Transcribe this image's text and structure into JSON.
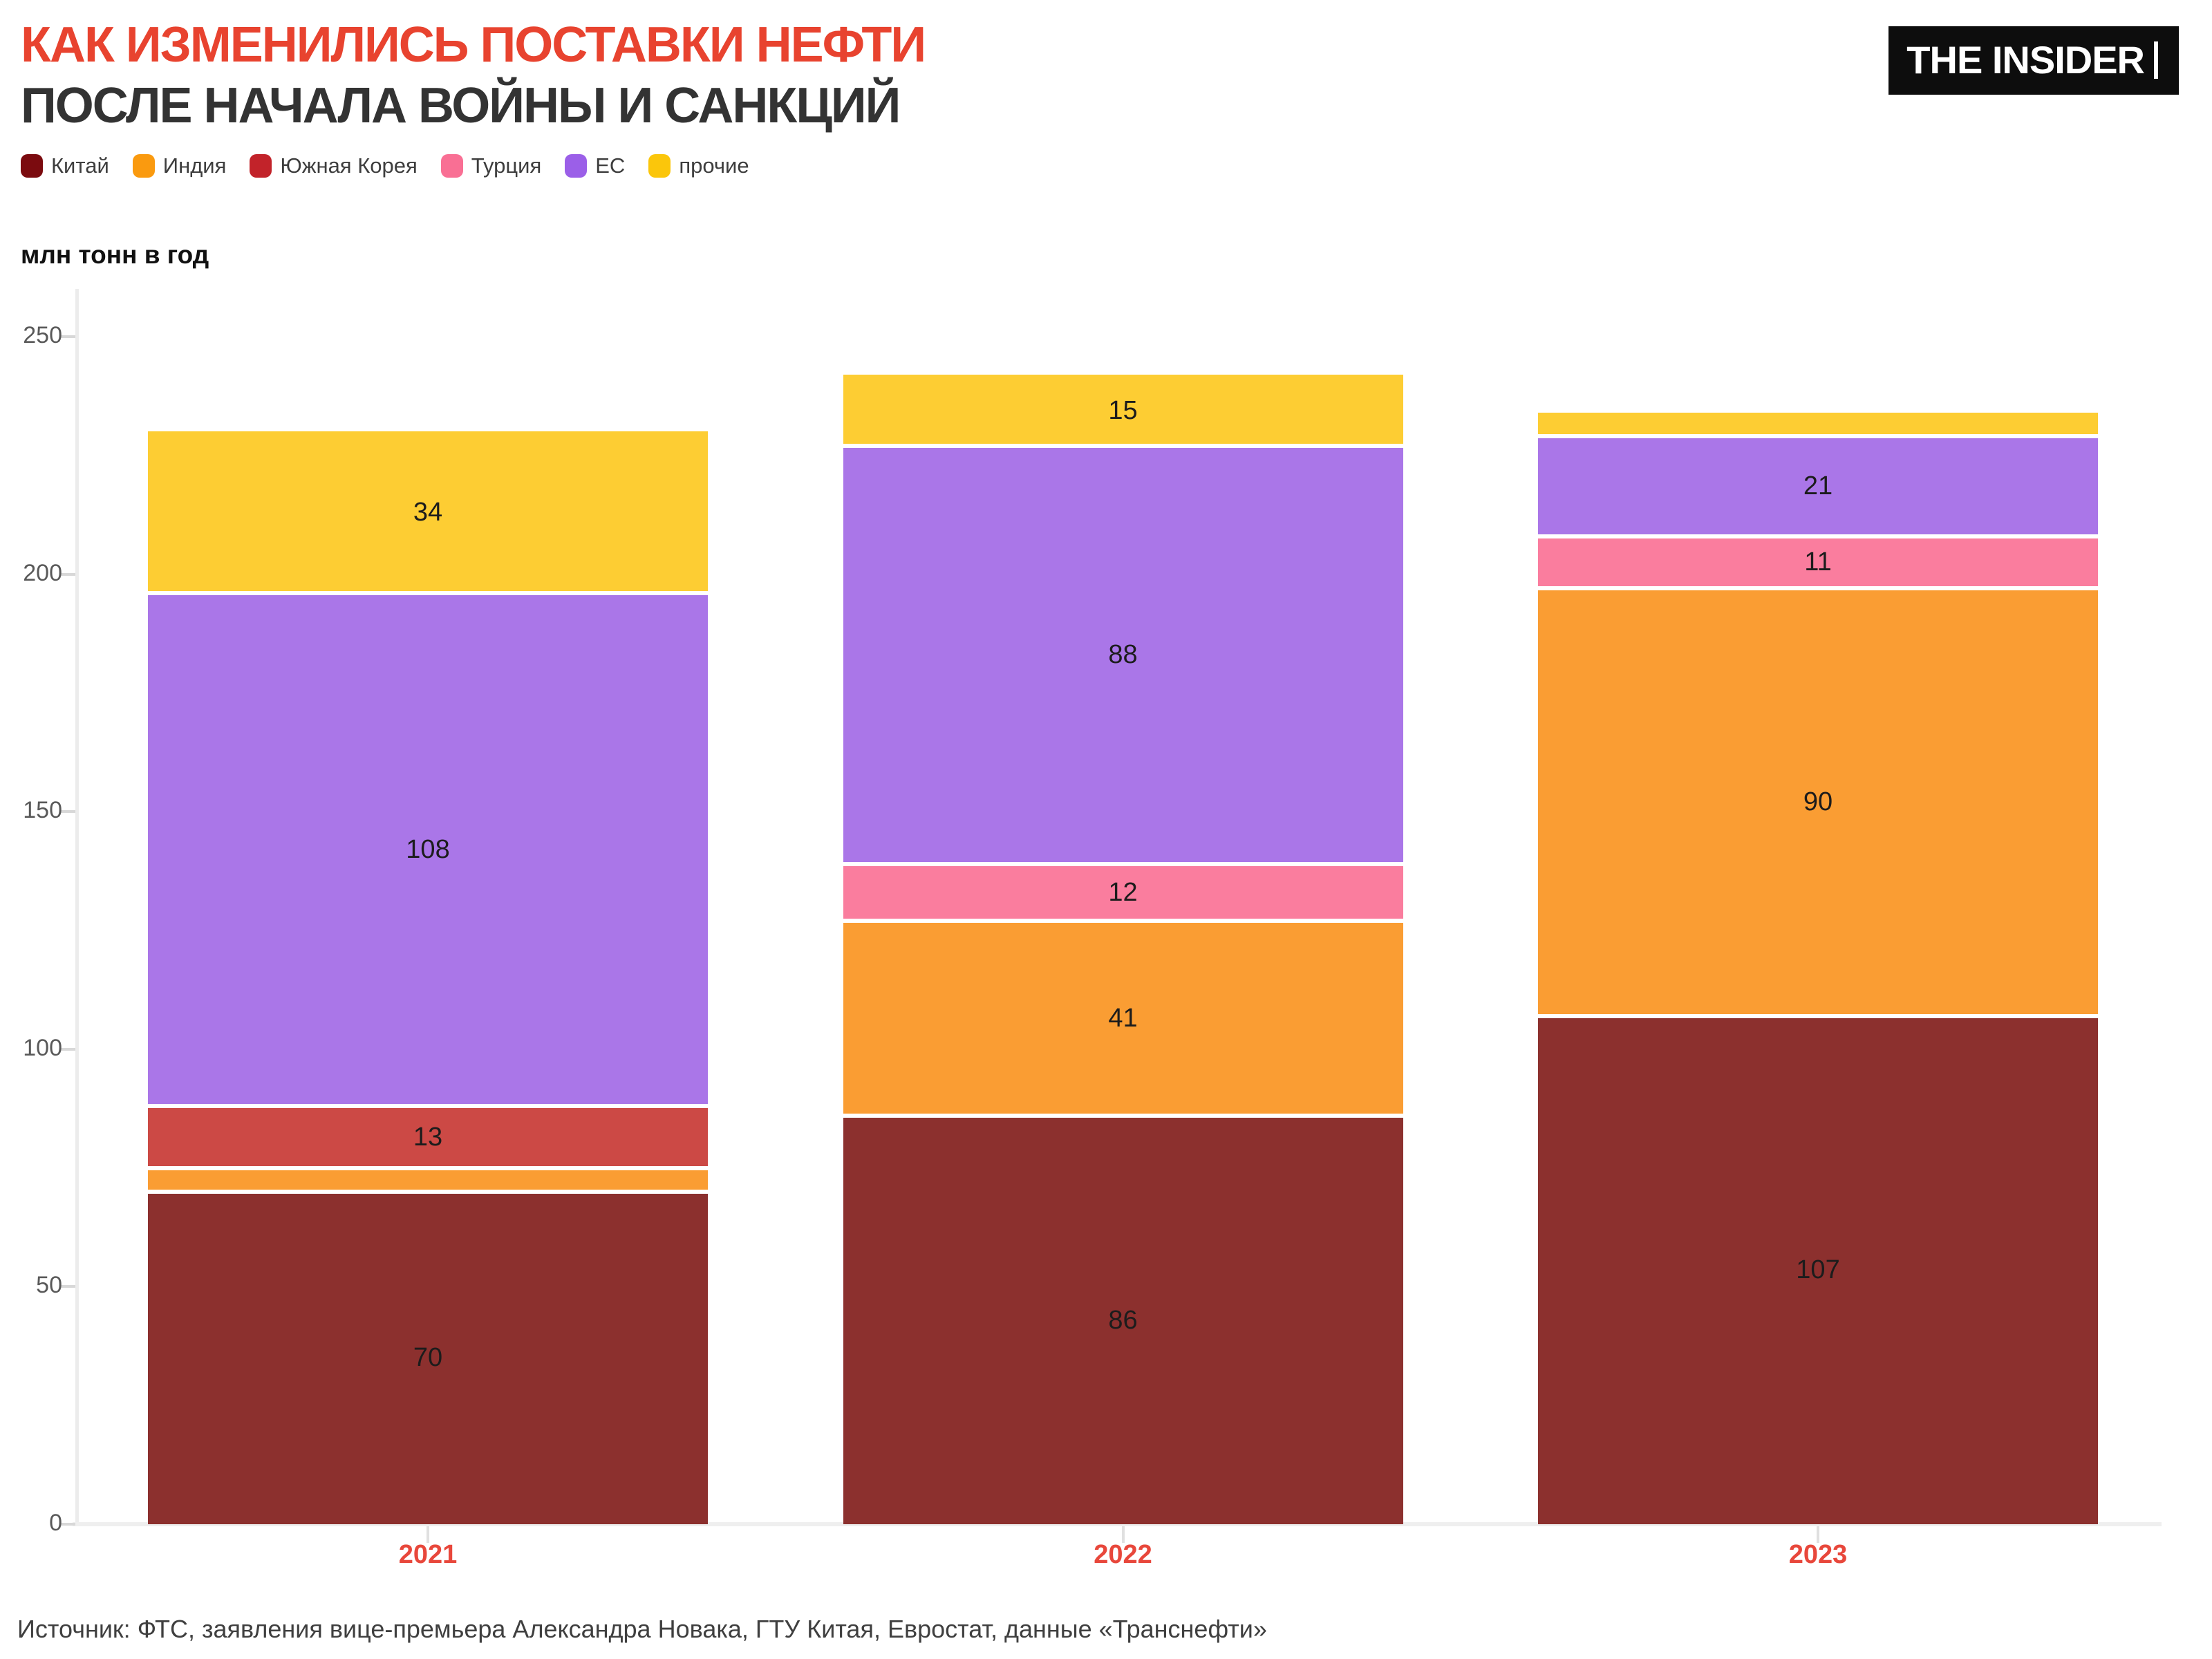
{
  "header": {
    "title_line1": "КАК ИЗМЕНИЛИСЬ ПОСТАВКИ НЕФТИ",
    "title_line2": "ПОСЛЕ НАЧАЛА ВОЙНЫ И САНКЦИЙ",
    "logo": "THE INSIDER"
  },
  "colors": {
    "title_accent": "#E8432F",
    "title_secondary": "#333333",
    "year_label": "#E8473B",
    "axis_line": "#ececec",
    "tick_label": "#595959",
    "value_label": "#1c1c1c",
    "source_text": "#3f3f3f"
  },
  "legend": {
    "items": [
      {
        "label": "Китай",
        "swatch_color": "#7B0B0F"
      },
      {
        "label": "Индия",
        "swatch_color": "#FA9A0F"
      },
      {
        "label": "Южная Корея",
        "swatch_color": "#C2232A"
      },
      {
        "label": "Турция",
        "swatch_color": "#F96F94"
      },
      {
        "label": "ЕС",
        "swatch_color": "#9B5FE8"
      },
      {
        "label": "прочие",
        "swatch_color": "#FBC60B"
      }
    ]
  },
  "chart": {
    "units_label": "млн тонн в год",
    "y_ticks": [
      0,
      50,
      100,
      150,
      200,
      250
    ]
  },
  "chart_data": {
    "type": "bar",
    "stacked": true,
    "title": "КАК ИЗМЕНИЛИСЬ ПОСТАВКИ НЕФТИ ПОСЛЕ НАЧАЛА ВОЙНЫ И САНКЦИЙ",
    "ylabel": "млн тонн в год",
    "ylim": [
      0,
      250
    ],
    "grid": false,
    "legend_position": "top",
    "label_min_value": 10,
    "categories": [
      "2021",
      "2022",
      "2023"
    ],
    "series": [
      {
        "name": "Китай",
        "color": "#8C302E",
        "values": [
          70,
          86,
          107
        ]
      },
      {
        "name": "Индия",
        "color": "#FA9D33",
        "values": [
          5,
          41,
          90
        ]
      },
      {
        "name": "Южная Корея",
        "color": "#CC4945",
        "values": [
          13,
          0,
          0
        ]
      },
      {
        "name": "Турция",
        "color": "#FA7D9E",
        "values": [
          0,
          12,
          11
        ]
      },
      {
        "name": "ЕС",
        "color": "#AA76E8",
        "values": [
          108,
          88,
          21
        ]
      },
      {
        "name": "прочие",
        "color": "#FDCD33",
        "values": [
          34,
          15,
          5
        ]
      }
    ],
    "totals": [
      230,
      242,
      234
    ]
  },
  "footer": {
    "source": "Источник: ФТС, заявления вице-премьера Александра Новака, ГТУ Китая, Евростат, данные «Транснефти»"
  }
}
